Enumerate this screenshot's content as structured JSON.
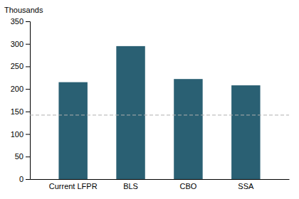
{
  "chart_data": {
    "type": "bar",
    "ylabel": "Thousands",
    "categories": [
      "Current LFPR",
      "BLS",
      "CBO",
      "SSA"
    ],
    "values": [
      215,
      295,
      222,
      208
    ],
    "color": "#2a6073",
    "reference_line": {
      "y": 142,
      "color": "#b0b0b0",
      "line_style": "dashed"
    },
    "ylim": [
      0,
      350
    ],
    "yticks": [
      0,
      50,
      100,
      150,
      200,
      250,
      300,
      350
    ],
    "grid": false
  }
}
